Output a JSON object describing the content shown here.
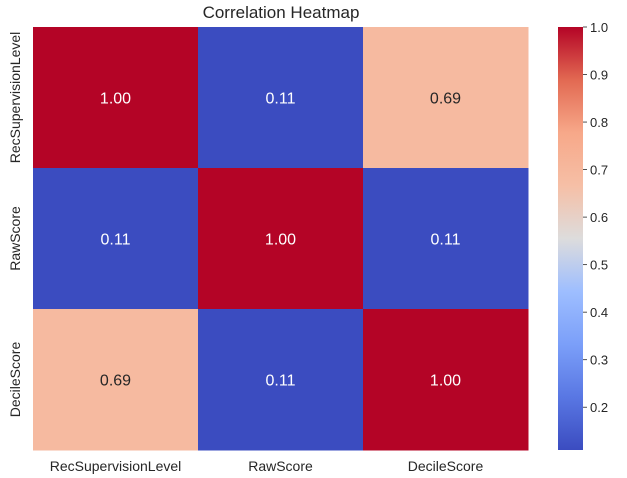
{
  "chart_data": {
    "type": "heatmap",
    "title": "Correlation Heatmap",
    "xlabel": "",
    "ylabel": "",
    "x_categories": [
      "RecSupervisionLevel",
      "RawScore",
      "DecileScore"
    ],
    "y_categories": [
      "RecSupervisionLevel",
      "RawScore",
      "DecileScore"
    ],
    "values": [
      [
        1.0,
        0.11,
        0.69
      ],
      [
        0.11,
        1.0,
        0.11
      ],
      [
        0.69,
        0.11,
        1.0
      ]
    ],
    "cell_labels": [
      [
        "1.00",
        "0.11",
        "0.69"
      ],
      [
        "0.11",
        "1.00",
        "0.11"
      ],
      [
        "0.69",
        "0.11",
        "1.00"
      ]
    ],
    "colormap": "coolwarm",
    "vmin": 0.11,
    "vmax": 1.0,
    "colorbar_ticks": [
      "1.0",
      "0.9",
      "0.8",
      "0.7",
      "0.6",
      "0.5",
      "0.4",
      "0.3",
      "0.2"
    ],
    "colorbar_tick_values": [
      1.0,
      0.9,
      0.8,
      0.7,
      0.6,
      0.5,
      0.4,
      0.3,
      0.2
    ],
    "grid": false
  }
}
